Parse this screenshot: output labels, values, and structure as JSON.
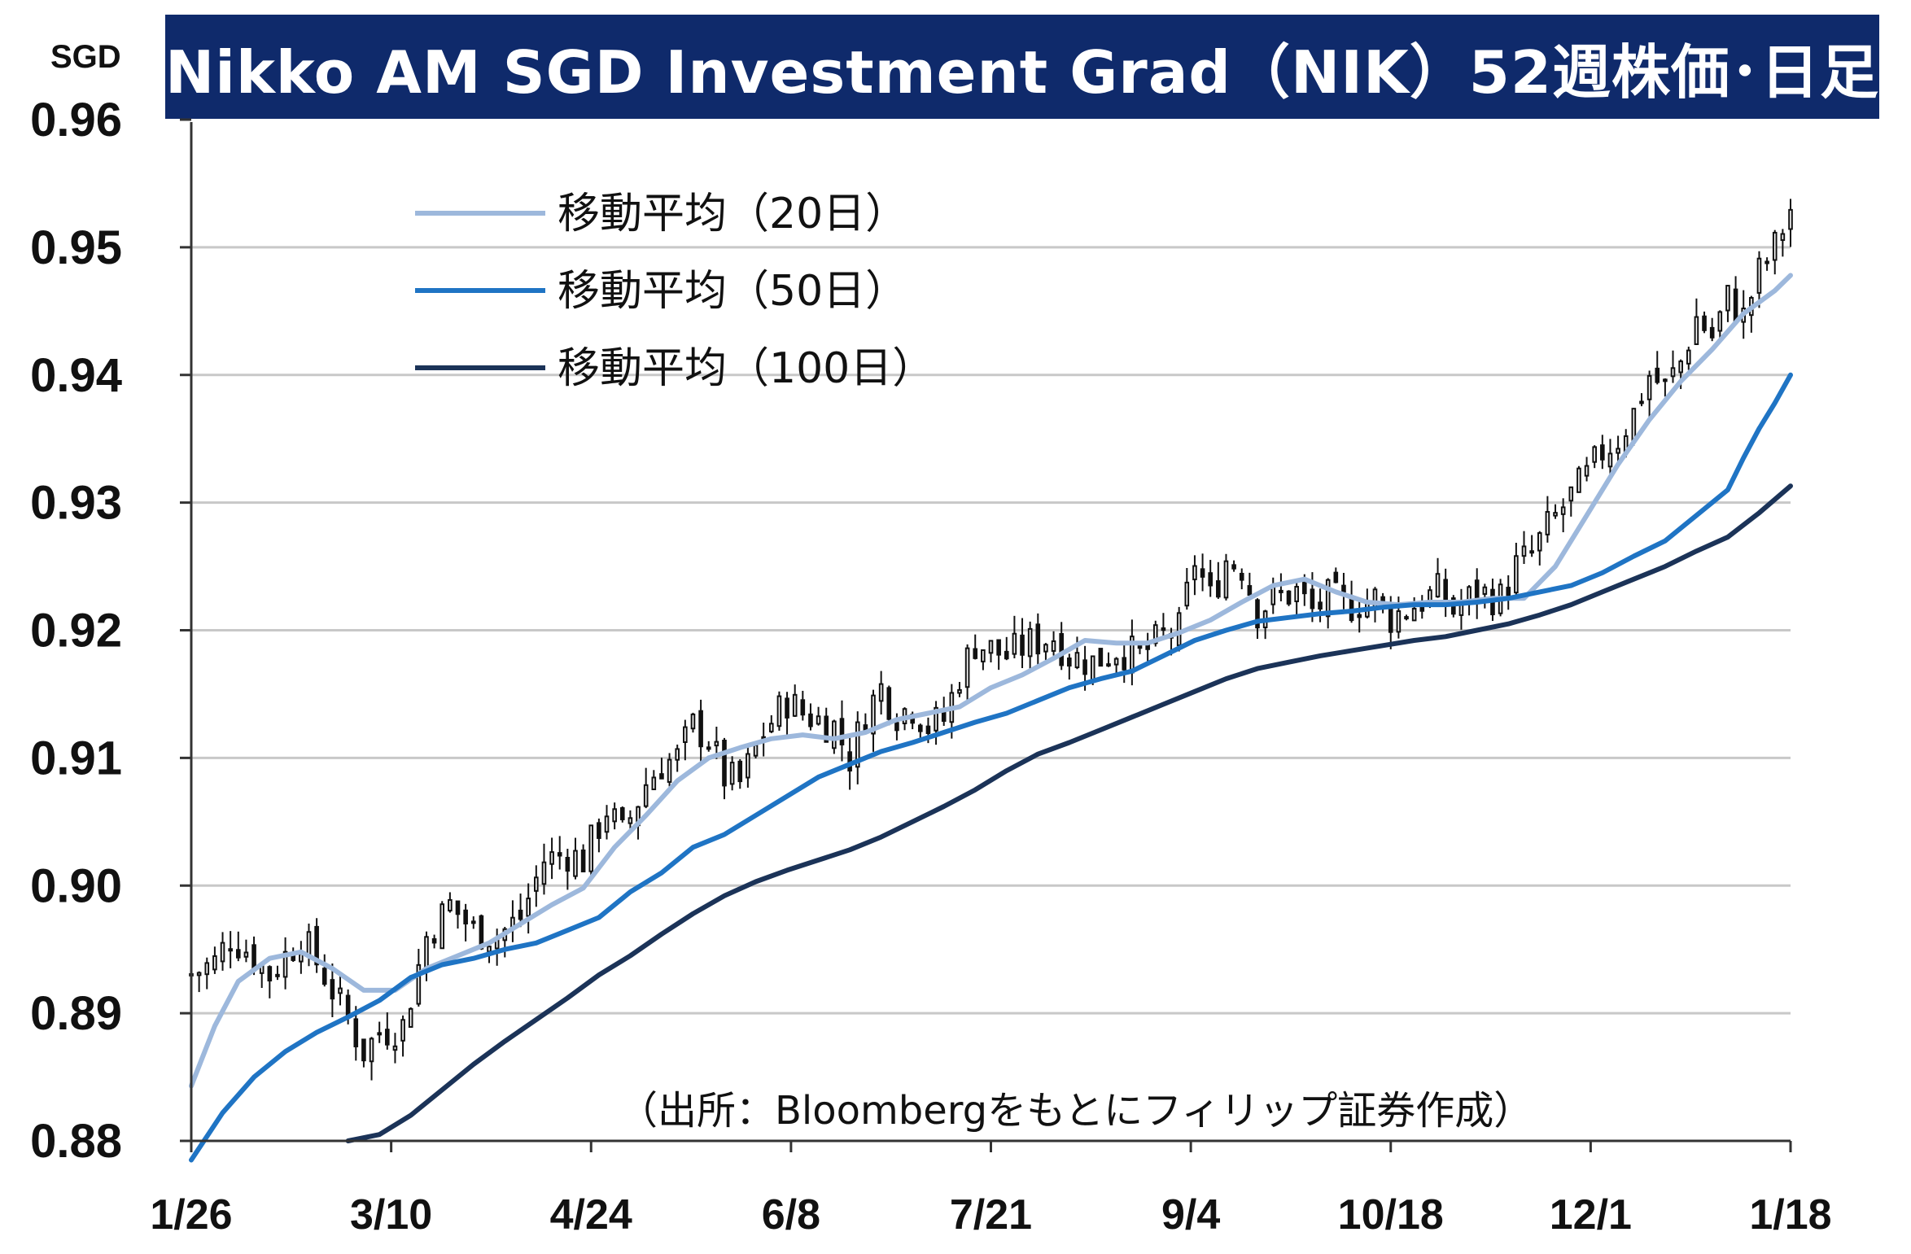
{
  "title": "Nikko AM SGD Investment Grad（NIK）52週株価･日足",
  "unit": "SGD",
  "source": "（出所：Bloombergをもとにフィリップ証券作成）",
  "colors": {
    "title_bg": "#0f2a6b",
    "ma20": "#9db8dc",
    "ma50": "#1f74c4",
    "ma100": "#1b3358",
    "grid": "#c8c8c8",
    "candle": "#111111"
  },
  "chart_data": {
    "type": "line",
    "x_axis": {
      "ticks": [
        "1/26",
        "3/10",
        "4/24",
        "6/8",
        "7/21",
        "9/4",
        "10/18",
        "12/1",
        "1/18"
      ]
    },
    "y_axis": {
      "ticks": [
        "0.96",
        "0.95",
        "0.94",
        "0.93",
        "0.92",
        "0.91",
        "0.90",
        "0.89",
        "0.88"
      ],
      "ylim": [
        0.88,
        0.96
      ]
    },
    "grid": true,
    "legend": {
      "position": "top-left"
    },
    "series": [
      {
        "name": "移動平均（20日）",
        "color": "#9db8dc",
        "points": [
          [
            0,
            0.8843
          ],
          [
            6,
            0.889
          ],
          [
            12,
            0.8925
          ],
          [
            20,
            0.8943
          ],
          [
            28,
            0.8948
          ],
          [
            36,
            0.8935
          ],
          [
            44,
            0.8918
          ],
          [
            52,
            0.8918
          ],
          [
            60,
            0.8935
          ],
          [
            68,
            0.8945
          ],
          [
            76,
            0.8955
          ],
          [
            84,
            0.897
          ],
          [
            92,
            0.8985
          ],
          [
            100,
            0.8998
          ],
          [
            108,
            0.903
          ],
          [
            116,
            0.9055
          ],
          [
            124,
            0.9082
          ],
          [
            132,
            0.91
          ],
          [
            140,
            0.9108
          ],
          [
            148,
            0.9115
          ],
          [
            156,
            0.9118
          ],
          [
            164,
            0.9115
          ],
          [
            172,
            0.912
          ],
          [
            180,
            0.913
          ],
          [
            188,
            0.9135
          ],
          [
            196,
            0.914
          ],
          [
            204,
            0.9155
          ],
          [
            212,
            0.9165
          ],
          [
            220,
            0.9178
          ],
          [
            228,
            0.9192
          ],
          [
            236,
            0.919
          ],
          [
            244,
            0.919
          ],
          [
            252,
            0.9198
          ],
          [
            260,
            0.9208
          ],
          [
            268,
            0.9222
          ],
          [
            276,
            0.9235
          ],
          [
            284,
            0.924
          ],
          [
            292,
            0.923
          ],
          [
            300,
            0.9222
          ],
          [
            308,
            0.922
          ],
          [
            316,
            0.9222
          ],
          [
            324,
            0.9222
          ],
          [
            332,
            0.9225
          ],
          [
            340,
            0.9225
          ],
          [
            348,
            0.925
          ],
          [
            356,
            0.929
          ],
          [
            364,
            0.933
          ],
          [
            372,
            0.9365
          ],
          [
            380,
            0.9395
          ],
          [
            388,
            0.942
          ],
          [
            396,
            0.9448
          ],
          [
            404,
            0.9466
          ],
          [
            408,
            0.9478
          ]
        ]
      },
      {
        "name": "移動平均（50日）",
        "color": "#1f74c4",
        "points": [
          [
            0,
            0.8785
          ],
          [
            8,
            0.8822
          ],
          [
            16,
            0.885
          ],
          [
            24,
            0.887
          ],
          [
            32,
            0.8885
          ],
          [
            40,
            0.8897
          ],
          [
            48,
            0.891
          ],
          [
            56,
            0.8928
          ],
          [
            64,
            0.8938
          ],
          [
            72,
            0.8943
          ],
          [
            80,
            0.895
          ],
          [
            88,
            0.8955
          ],
          [
            96,
            0.8965
          ],
          [
            104,
            0.8975
          ],
          [
            112,
            0.8995
          ],
          [
            120,
            0.901
          ],
          [
            128,
            0.903
          ],
          [
            136,
            0.904
          ],
          [
            144,
            0.9055
          ],
          [
            152,
            0.907
          ],
          [
            160,
            0.9085
          ],
          [
            168,
            0.9095
          ],
          [
            176,
            0.9105
          ],
          [
            184,
            0.9112
          ],
          [
            192,
            0.912
          ],
          [
            200,
            0.9128
          ],
          [
            208,
            0.9135
          ],
          [
            216,
            0.9145
          ],
          [
            224,
            0.9155
          ],
          [
            232,
            0.9162
          ],
          [
            240,
            0.9168
          ],
          [
            248,
            0.918
          ],
          [
            256,
            0.9192
          ],
          [
            264,
            0.92
          ],
          [
            272,
            0.9207
          ],
          [
            280,
            0.921
          ],
          [
            288,
            0.9213
          ],
          [
            296,
            0.9215
          ],
          [
            304,
            0.9218
          ],
          [
            312,
            0.922
          ],
          [
            320,
            0.922
          ],
          [
            328,
            0.9222
          ],
          [
            336,
            0.9225
          ],
          [
            344,
            0.923
          ],
          [
            352,
            0.9235
          ],
          [
            360,
            0.9245
          ],
          [
            368,
            0.9258
          ],
          [
            376,
            0.927
          ],
          [
            384,
            0.929
          ],
          [
            392,
            0.931
          ],
          [
            396,
            0.9335
          ],
          [
            400,
            0.9358
          ],
          [
            404,
            0.9378
          ],
          [
            408,
            0.94
          ]
        ]
      },
      {
        "name": "移動平均（100日）",
        "color": "#1b3358",
        "points": [
          [
            40,
            0.88
          ],
          [
            48,
            0.8805
          ],
          [
            56,
            0.882
          ],
          [
            64,
            0.884
          ],
          [
            72,
            0.886
          ],
          [
            80,
            0.8878
          ],
          [
            88,
            0.8895
          ],
          [
            96,
            0.8912
          ],
          [
            104,
            0.893
          ],
          [
            112,
            0.8945
          ],
          [
            120,
            0.8962
          ],
          [
            128,
            0.8978
          ],
          [
            136,
            0.8992
          ],
          [
            144,
            0.9003
          ],
          [
            152,
            0.9012
          ],
          [
            160,
            0.902
          ],
          [
            168,
            0.9028
          ],
          [
            176,
            0.9038
          ],
          [
            184,
            0.905
          ],
          [
            192,
            0.9062
          ],
          [
            200,
            0.9075
          ],
          [
            208,
            0.909
          ],
          [
            216,
            0.9103
          ],
          [
            224,
            0.9112
          ],
          [
            232,
            0.9122
          ],
          [
            240,
            0.9132
          ],
          [
            248,
            0.9142
          ],
          [
            256,
            0.9152
          ],
          [
            264,
            0.9162
          ],
          [
            272,
            0.917
          ],
          [
            280,
            0.9175
          ],
          [
            288,
            0.918
          ],
          [
            296,
            0.9184
          ],
          [
            304,
            0.9188
          ],
          [
            312,
            0.9192
          ],
          [
            320,
            0.9195
          ],
          [
            328,
            0.92
          ],
          [
            336,
            0.9205
          ],
          [
            344,
            0.9212
          ],
          [
            352,
            0.922
          ],
          [
            360,
            0.923
          ],
          [
            368,
            0.924
          ],
          [
            376,
            0.925
          ],
          [
            384,
            0.9262
          ],
          [
            392,
            0.9273
          ],
          [
            400,
            0.9292
          ],
          [
            408,
            0.9313
          ]
        ]
      },
      {
        "name": "",
        "type": "candlestick",
        "color": "#111111",
        "close_anchors": [
          [
            0,
            0.893
          ],
          [
            6,
            0.894
          ],
          [
            10,
            0.896
          ],
          [
            14,
            0.895
          ],
          [
            20,
            0.893
          ],
          [
            28,
            0.896
          ],
          [
            34,
            0.893
          ],
          [
            40,
            0.8895
          ],
          [
            44,
            0.887
          ],
          [
            48,
            0.8885
          ],
          [
            54,
            0.889
          ],
          [
            60,
            0.896
          ],
          [
            66,
            0.8985
          ],
          [
            72,
            0.8965
          ],
          [
            78,
            0.896
          ],
          [
            84,
            0.8975
          ],
          [
            90,
            0.902
          ],
          [
            96,
            0.9025
          ],
          [
            100,
            0.902
          ],
          [
            106,
            0.906
          ],
          [
            110,
            0.904
          ],
          [
            116,
            0.908
          ],
          [
            120,
            0.9095
          ],
          [
            124,
            0.91
          ],
          [
            128,
            0.9125
          ],
          [
            132,
            0.9115
          ],
          [
            136,
            0.9085
          ],
          [
            140,
            0.908
          ],
          [
            146,
            0.912
          ],
          [
            152,
            0.9145
          ],
          [
            156,
            0.9135
          ],
          [
            160,
            0.913
          ],
          [
            164,
            0.9125
          ],
          [
            168,
            0.91
          ],
          [
            172,
            0.9135
          ],
          [
            176,
            0.9155
          ],
          [
            180,
            0.9135
          ],
          [
            184,
            0.914
          ],
          [
            188,
            0.9125
          ],
          [
            192,
            0.913
          ],
          [
            196,
            0.9165
          ],
          [
            200,
            0.919
          ],
          [
            204,
            0.9185
          ],
          [
            208,
            0.918
          ],
          [
            214,
            0.919
          ],
          [
            220,
            0.9195
          ],
          [
            224,
            0.918
          ],
          [
            230,
            0.9175
          ],
          [
            236,
            0.9185
          ],
          [
            242,
            0.918
          ],
          [
            248,
            0.9195
          ],
          [
            252,
            0.92
          ],
          [
            256,
            0.9255
          ],
          [
            260,
            0.9225
          ],
          [
            264,
            0.9255
          ],
          [
            268,
            0.925
          ],
          [
            272,
            0.9215
          ],
          [
            276,
            0.9225
          ],
          [
            282,
            0.923
          ],
          [
            286,
            0.9215
          ],
          [
            290,
            0.9225
          ],
          [
            296,
            0.922
          ],
          [
            302,
            0.9225
          ],
          [
            306,
            0.921
          ],
          [
            312,
            0.922
          ],
          [
            318,
            0.923
          ],
          [
            322,
            0.9215
          ],
          [
            328,
            0.923
          ],
          [
            334,
            0.9225
          ],
          [
            338,
            0.925
          ],
          [
            342,
            0.926
          ],
          [
            346,
            0.928
          ],
          [
            352,
            0.9305
          ],
          [
            356,
            0.932
          ],
          [
            360,
            0.934
          ],
          [
            364,
            0.935
          ],
          [
            368,
            0.937
          ],
          [
            372,
            0.94
          ],
          [
            376,
            0.939
          ],
          [
            380,
            0.941
          ],
          [
            384,
            0.9445
          ],
          [
            388,
            0.943
          ],
          [
            392,
            0.946
          ],
          [
            396,
            0.9445
          ],
          [
            400,
            0.948
          ],
          [
            404,
            0.95
          ],
          [
            408,
            0.953
          ]
        ]
      }
    ]
  }
}
